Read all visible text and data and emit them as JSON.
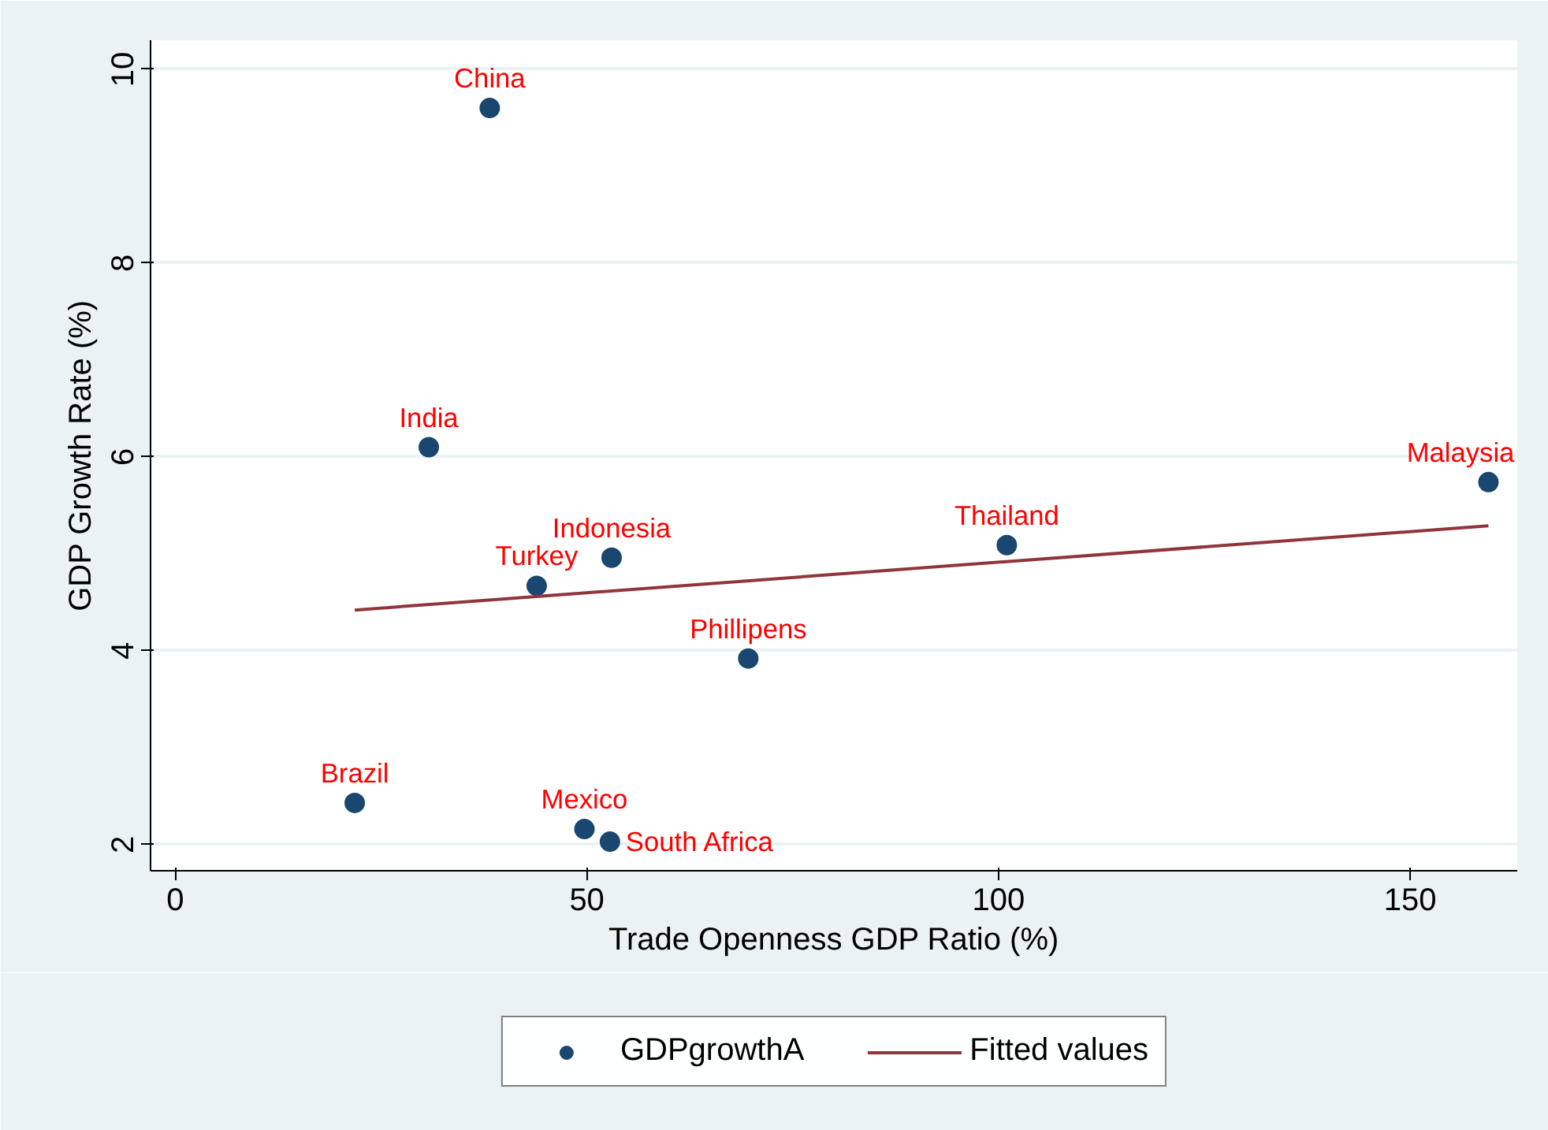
{
  "chart_data": {
    "type": "scatter",
    "xlabel": "Trade Openness GDP Ratio (%)",
    "ylabel": "GDP Growth Rate (%)",
    "xlim": [
      -3,
      163
    ],
    "ylim": [
      1.73,
      10.3
    ],
    "xticks": [
      0,
      50,
      100,
      150
    ],
    "yticks": [
      2,
      4,
      6,
      8,
      10
    ],
    "grid": "y",
    "legend": "bottom",
    "series": [
      {
        "name": "GDPgrowthA",
        "type": "scatter",
        "marker": "circle",
        "color": "#1a476f",
        "x": [
          38.2,
          30.8,
          43.9,
          53.0,
          101.0,
          159.5,
          69.6,
          21.8,
          49.7,
          52.8
        ],
        "values": [
          9.6,
          6.1,
          4.67,
          4.96,
          5.09,
          5.74,
          3.92,
          2.43,
          2.16,
          2.03
        ]
      },
      {
        "name": "Fitted values",
        "type": "line",
        "marker": "none",
        "color": "#90353b",
        "line_style": "solid",
        "x": [
          21.8,
          159.5
        ],
        "values": [
          4.42,
          5.29
        ]
      }
    ],
    "annotations": [
      {
        "text": "China",
        "x": 38.2,
        "y": 9.6
      },
      {
        "text": "India",
        "x": 30.8,
        "y": 6.1
      },
      {
        "text": "Turkey",
        "x": 43.9,
        "y": 4.67
      },
      {
        "text": "Indonesia",
        "x": 53.0,
        "y": 4.96
      },
      {
        "text": "Thailand",
        "x": 101.0,
        "y": 5.09
      },
      {
        "text": "Malaysia",
        "x": 159.5,
        "y": 5.74
      },
      {
        "text": "Phillipens",
        "x": 69.6,
        "y": 3.92
      },
      {
        "text": "Brazil",
        "x": 21.8,
        "y": 2.43
      },
      {
        "text": "Mexico",
        "x": 49.7,
        "y": 2.16
      },
      {
        "text": "South Africa",
        "x": 52.8,
        "y": 2.03
      }
    ]
  }
}
